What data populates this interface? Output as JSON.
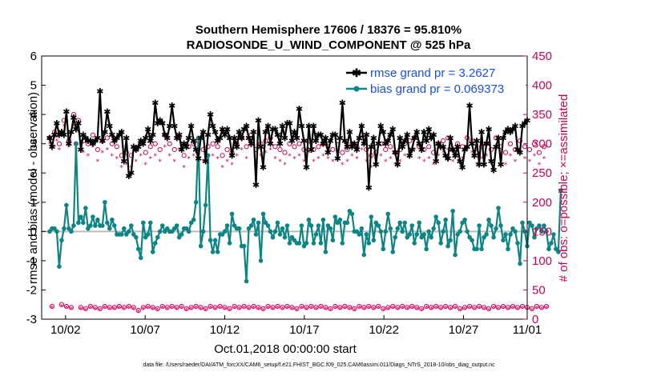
{
  "colors": {
    "rmse": "#000000",
    "bias": "#0f8484",
    "obs": "#cc0055",
    "zero_line": "#bbbbbb",
    "legend_text": "#1a4fe0"
  },
  "chart_data": {
    "type": "line",
    "title": "Southern Hemisphere 17606 / 18376 = 95.810%",
    "subtitle": "RADIOSONDE_U_WIND_COMPONENT @ 525 hPa",
    "xlabel": "Oct.01,2018 00:00:00 start",
    "ylabel": "rmse and bias (model - observation)",
    "y2label": "# of obs: o=possible; ×=assimilated",
    "footer": "data file: /Users/raeder/DAI/ATM_forcXX/CAM6_setup/f.e21.FHIST_BGC.f09_025.CAM6assim.011/Diags_NTrS_2018-10/obs_diag_output.nc",
    "xlim": [
      0.5,
      31.0
    ],
    "ylim": [
      -3,
      6
    ],
    "y2lim": [
      0,
      450
    ],
    "xticks": [
      {
        "day": 2,
        "label": "10/02"
      },
      {
        "day": 7,
        "label": "10/07"
      },
      {
        "day": 12,
        "label": "10/12"
      },
      {
        "day": 17,
        "label": "10/17"
      },
      {
        "day": 22,
        "label": "10/22"
      },
      {
        "day": 27,
        "label": "10/27"
      },
      {
        "day": 32,
        "label": "11/01"
      }
    ],
    "yticks": [
      "-3",
      "-2",
      "-1",
      "0",
      "1",
      "2",
      "3",
      "4",
      "5",
      "6"
    ],
    "y2ticks": [
      "0",
      "50",
      "100",
      "150",
      "200",
      "250",
      "300",
      "350",
      "400",
      "450"
    ],
    "legend_placement": "top-right",
    "grid": false,
    "series": [
      {
        "name": "rmse grand pr = 3.2627",
        "values": [
          3.2,
          2.9,
          3.3,
          3.7,
          3.3,
          3.4,
          3.3,
          4.1,
          3.0,
          3.4,
          3.9,
          3.5,
          3.7,
          2.8,
          3.3,
          3.2,
          3.1,
          3.1,
          3.0,
          3.1,
          3.2,
          4.8,
          3.1,
          3.4,
          4.1,
          3.6,
          3.3,
          3.1,
          3.2,
          3.3,
          3.4,
          2.4,
          3.2,
          1.9,
          2.0,
          2.9,
          2.8,
          2.9,
          3.1,
          3.0,
          3.2,
          3.5,
          3.1,
          3.3,
          4.4,
          3.7,
          3.8,
          3.7,
          3.3,
          3.2,
          3.6,
          4.3,
          3.6,
          3.2,
          3.3,
          2.8,
          3.0,
          2.9,
          3.2,
          3.6,
          3.1,
          2.8,
          2.5,
          3.2,
          3.4,
          2.4,
          3.3,
          4.0,
          3.6,
          3.4,
          3.1,
          3.2,
          3.5,
          3.3,
          3.5,
          3.2,
          2.6,
          3.2,
          2.9,
          3.4,
          3.2,
          3.5,
          3.6,
          3.2,
          3.0,
          3.4,
          1.6,
          3.8,
          2.9,
          2.2,
          3.4,
          3.6,
          3.0,
          3.5,
          3.5,
          3.3,
          3.0,
          3.6,
          3.2,
          3.7,
          3.7,
          3.1,
          3.4,
          3.2,
          4.2,
          3.6,
          3.1,
          2.2,
          3.6,
          2.8,
          3.6,
          3.1,
          3.3,
          3.3,
          3.0,
          3.2,
          2.7,
          3.1,
          3.3,
          3.3,
          2.5,
          3.2,
          4.4,
          3.1,
          2.9,
          3.4,
          2.9,
          3.0,
          2.8,
          3.2,
          3.6,
          3.0,
          3.3,
          1.5,
          2.9,
          3.2,
          2.3,
          3.0,
          3.6,
          3.4,
          3.0,
          3.1,
          3.3,
          3.5,
          2.7,
          2.3,
          3.2,
          2.9,
          3.1,
          3.3,
          2.6,
          2.8,
          3.2,
          3.4,
          3.0,
          2.8,
          3.4,
          3.1,
          3.5,
          3.2,
          3.3,
          2.4,
          3.0,
          2.9,
          2.9,
          2.6,
          2.5,
          3.2,
          2.8,
          2.6,
          2.9,
          2.4,
          2.2,
          2.8,
          2.9,
          4.3,
          3.0,
          2.6,
          3.1,
          2.3,
          3.4,
          2.3,
          3.0,
          3.5,
          2.4,
          2.1,
          2.9,
          3.2,
          2.3,
          3.2,
          3.4,
          3.5,
          3.4,
          3.5,
          3.6,
          2.8,
          2.7,
          3.6,
          3.7,
          3.8
        ]
      },
      {
        "name": "bias grand pr = 0.069373",
        "values": [
          0.0,
          0.1,
          0.1,
          0.0,
          -1.2,
          -0.3,
          0.1,
          0.9,
          0.1,
          0.0,
          0.2,
          3.0,
          0.3,
          0.5,
          0.3,
          0.8,
          0.1,
          0.2,
          0.5,
          0.2,
          0.4,
          0.2,
          0.2,
          1.0,
          0.3,
          0.1,
          0.4,
          0.2,
          -0.1,
          -0.1,
          -0.1,
          0.1,
          -0.1,
          0.0,
          0.2,
          -0.1,
          -0.2,
          -0.6,
          -0.9,
          0.3,
          -0.2,
          -0.1,
          0.3,
          -0.7,
          -0.4,
          -0.2,
          0.0,
          0.2,
          0.0,
          0.1,
          0.0,
          0.0,
          0.1,
          0.2,
          -0.2,
          -0.1,
          0.1,
          0.1,
          0.0,
          0.3,
          0.4,
          1.0,
          3.2,
          -0.5,
          0.0,
          0.9,
          2.6,
          -0.3,
          -0.7,
          -0.3,
          -0.7,
          -0.1,
          -0.1,
          0.0,
          0.2,
          -0.4,
          0.6,
          0.2,
          0.1,
          0.1,
          -0.5,
          -0.5,
          -1.7,
          0.1,
          0.2,
          0.4,
          -0.1,
          0.3,
          -1.0,
          0.6,
          0.3,
          0.2,
          0.0,
          -0.2,
          0.0,
          0.3,
          -0.1,
          0.1,
          -0.2,
          0.2,
          -0.4,
          -0.2,
          -0.3,
          -0.4,
          -0.4,
          0.2,
          -0.5,
          -0.4,
          0.4,
          0.2,
          -0.4,
          -0.1,
          0.2,
          -0.4,
          0.4,
          -0.7,
          0.2,
          0.1,
          -0.3,
          0.5,
          0.3,
          0.4,
          -0.4,
          0.3,
          0.3,
          0.7,
          0.6,
          0.0,
          0.0,
          -0.1,
          0.1,
          -0.8,
          -0.1,
          -0.4,
          0.5,
          -0.3,
          0.3,
          0.2,
          0.0,
          -0.6,
          0.0,
          0.6,
          0.1,
          -0.7,
          -0.2,
          0.1,
          0.3,
          0.0,
          0.3,
          -0.2,
          -0.1,
          0.2,
          -0.4,
          -0.1,
          0.3,
          -0.2,
          -0.1,
          -0.6,
          0.0,
          -0.2,
          0.1,
          0.5,
          0.3,
          -0.4,
          0.0,
          0.4,
          -0.5,
          -0.3,
          0.7,
          -0.8,
          -0.1,
          0.0,
          0.3,
          0.4,
          0.0,
          -0.2,
          -0.3,
          -0.6,
          -0.6,
          0.2,
          -0.6,
          -0.2,
          -0.1,
          0.4,
          0.2,
          -0.2,
          0.1,
          0.8,
          0.2,
          -0.3,
          -0.1,
          -0.6,
          -0.1,
          0.1,
          0.0,
          -0.4,
          -1.1,
          0.3,
          0.0,
          -0.5,
          0.3,
          0.2,
          -0.2,
          0.1,
          0.2,
          0.0,
          0.2,
          0.0,
          -0.6,
          -0.4,
          -0.1,
          -0.6,
          -0.7,
          1.4
        ]
      }
    ],
    "obs_possible": {
      "name": "o=possible",
      "values": [
        310,
        22,
        320,
        315,
        300,
        25,
        340,
        22,
        305,
        20,
        350,
        300,
        340,
        20,
        305,
        18,
        300,
        22,
        315,
        20,
        290,
        18,
        305,
        22,
        310,
        20,
        300,
        20,
        295,
        22,
        280,
        20,
        285,
        22,
        280,
        20,
        290,
        15,
        300,
        20,
        285,
        22,
        295,
        20,
        300,
        18,
        290,
        22,
        315,
        20,
        300,
        22,
        290,
        20,
        310,
        22,
        280,
        18,
        295,
        20,
        300,
        22,
        305,
        20,
        290,
        18,
        295,
        22,
        300,
        20,
        295,
        22,
        280,
        20,
        290,
        18,
        285,
        22,
        300,
        20,
        310,
        22,
        295,
        20,
        315,
        22,
        290,
        20,
        300,
        18,
        305,
        22,
        310,
        20,
        295,
        22,
        290,
        20,
        285,
        22,
        300,
        20,
        295,
        18,
        300,
        22,
        290,
        20,
        305,
        22,
        290,
        20,
        295,
        22,
        300,
        20,
        295,
        18,
        290,
        22,
        305,
        20,
        285,
        22,
        290,
        20,
        300,
        18,
        295,
        22,
        310,
        20,
        290,
        22,
        280,
        20,
        285,
        22,
        300,
        18,
        290,
        20,
        295,
        22,
        285,
        20,
        290,
        22,
        300,
        20,
        305,
        22,
        310,
        20,
        295,
        18,
        290,
        22,
        295,
        20,
        285,
        22,
        300,
        20,
        305,
        22,
        310,
        20,
        290,
        22,
        300,
        18,
        295,
        20,
        310,
        22,
        305,
        20,
        285,
        22,
        295,
        20,
        300,
        18,
        290,
        22,
        310,
        20,
        295,
        22,
        285,
        20,
        300,
        22,
        290,
        20,
        305,
        22,
        295,
        20,
        290,
        18,
        300,
        22,
        285,
        20,
        295,
        22
      ]
    },
    "obs_assimilated": {
      "name": "×=assimilated",
      "values": [
        300,
        20,
        295,
        305,
        290,
        22,
        330,
        20,
        295,
        18,
        330,
        290,
        320,
        18,
        285,
        16,
        280,
        20,
        295,
        18,
        270,
        16,
        285,
        20,
        290,
        18,
        280,
        18,
        275,
        20,
        260,
        18,
        265,
        20,
        260,
        18,
        270,
        13,
        280,
        18,
        265,
        20,
        275,
        18,
        280,
        16,
        270,
        20,
        295,
        18,
        280,
        20,
        270,
        18,
        290,
        20,
        260,
        16,
        275,
        18,
        280,
        20,
        285,
        18,
        270,
        16,
        275,
        20,
        280,
        18,
        275,
        20,
        260,
        18,
        270,
        16,
        265,
        20,
        280,
        18,
        290,
        20,
        275,
        18,
        295,
        20,
        270,
        18,
        280,
        16,
        285,
        20,
        290,
        18,
        275,
        20,
        270,
        18,
        265,
        20,
        280,
        18,
        275,
        16,
        280,
        20,
        270,
        18,
        285,
        20,
        270,
        18,
        275,
        20,
        280,
        18,
        275,
        16,
        270,
        20,
        285,
        18,
        265,
        20,
        270,
        18,
        280,
        16,
        275,
        20,
        290,
        18,
        270,
        20,
        260,
        18,
        265,
        20,
        280,
        16,
        270,
        18,
        275,
        20,
        265,
        18,
        270,
        20,
        280,
        18,
        285,
        20,
        290,
        18,
        275,
        16,
        270,
        20,
        275,
        18,
        265,
        20,
        280,
        18,
        285,
        20,
        290,
        18,
        270,
        20,
        280,
        16,
        275,
        18,
        290,
        20,
        285,
        18,
        265,
        20,
        275,
        18,
        280,
        16,
        270,
        20,
        290,
        18,
        275,
        20,
        265,
        18,
        280,
        20,
        270,
        18,
        285,
        20,
        275,
        18,
        270,
        16,
        280,
        20,
        265,
        18,
        275,
        20
      ]
    }
  }
}
